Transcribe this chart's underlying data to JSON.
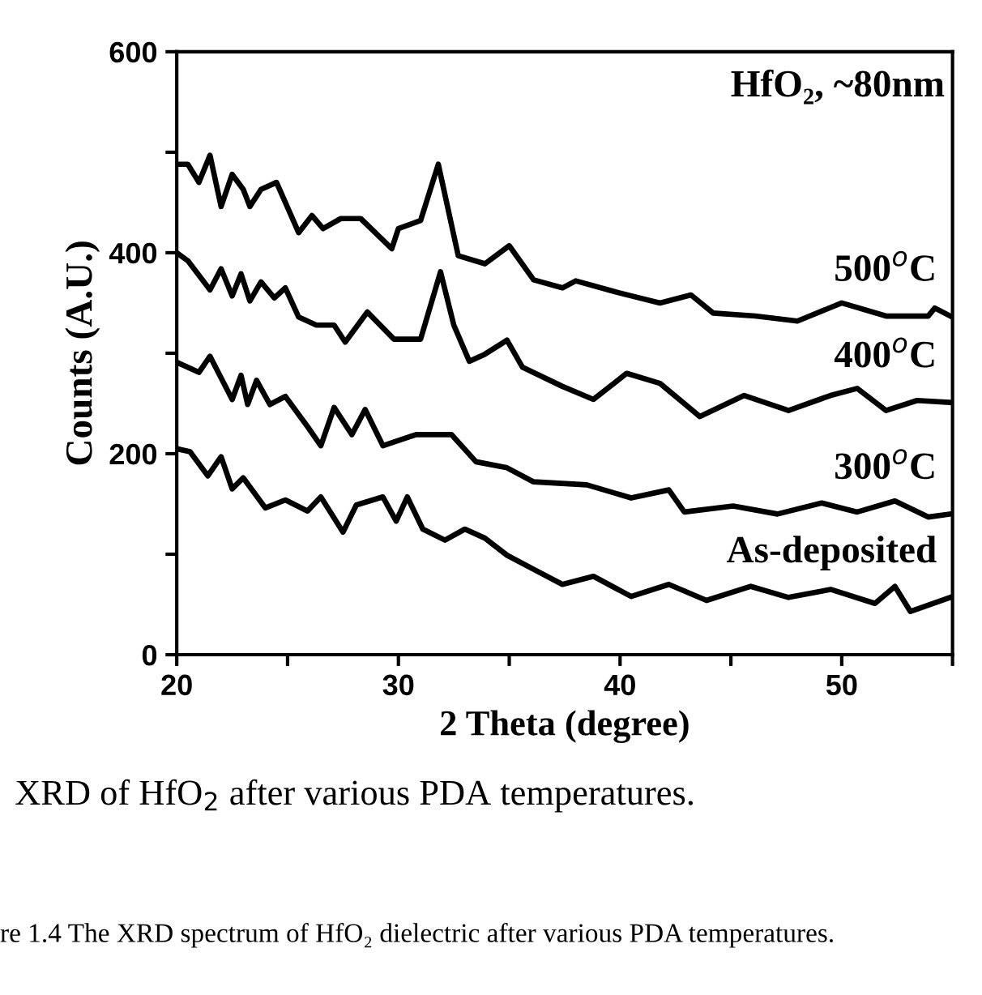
{
  "chart_data": {
    "type": "line",
    "xlabel": "2 Theta (degree)",
    "ylabel": "Counts (A.U.)",
    "xlim": [
      20,
      55
    ],
    "xticks": [
      20,
      {
        "value": 25,
        "label": null
      },
      30,
      {
        "value": 35,
        "label": null
      },
      40,
      {
        "value": 45,
        "label": null
      },
      50,
      {
        "value": 55,
        "label": null
      }
    ],
    "ylim": [
      0,
      600
    ],
    "yticks": [
      0,
      {
        "value": 100,
        "label": null
      },
      200,
      {
        "value": 300,
        "label": null
      },
      400,
      {
        "value": 500,
        "label": null
      },
      600
    ],
    "grid": false,
    "legend": false,
    "marker": "none",
    "line_style": "solid",
    "annotations": [
      "HfO₂, ~80nm",
      "XRD of HfO$_{2}$ after various PDA temperatures.",
      "re 1.4 The XRD spectrum of HfO₂ dielectric after various PDA temperatures."
    ],
    "series": [
      {
        "name": "500$^{o}$C",
        "color": "#000000",
        "x": [
          20,
          20.5,
          21,
          21.5,
          22,
          22.5,
          23,
          23.3,
          23.8,
          24.5,
          25.5,
          26.1,
          26.6,
          27.4,
          28.3,
          29.7,
          30,
          31,
          31.8,
          32.7,
          33.9,
          35.0,
          36.1,
          37.4,
          38.0,
          39.8,
          41.8,
          43.2,
          44.2,
          46.1,
          48.0,
          50.0,
          52.0,
          53.9,
          54.2,
          54.9
        ],
        "values": [
          488,
          488,
          470,
          497,
          446,
          478,
          463,
          446,
          463,
          470,
          420,
          437,
          424,
          434,
          434,
          404,
          424,
          432,
          488,
          397,
          389,
          407,
          373,
          365,
          372,
          361,
          350,
          358,
          340,
          337,
          332,
          350,
          337,
          337,
          345,
          337
        ]
      },
      {
        "name": "400$^{o}$C",
        "color": "#000000",
        "x": [
          20,
          20.5,
          21.5,
          22,
          22.5,
          22.9,
          23.3,
          23.8,
          24.4,
          24.9,
          25.5,
          26.3,
          27.1,
          27.6,
          28.6,
          29.8,
          31,
          31.9,
          32.5,
          33.2,
          33.9,
          34.9,
          35.6,
          37.4,
          38.8,
          40.3,
          41.8,
          43.6,
          45.6,
          47.6,
          49.5,
          50.7,
          52,
          53.4,
          54.9
        ],
        "values": [
          400,
          392,
          363,
          384,
          357,
          379,
          352,
          371,
          355,
          365,
          336,
          328,
          328,
          311,
          341,
          314,
          314,
          381,
          328,
          292,
          299,
          313,
          286,
          267,
          254,
          280,
          270,
          237,
          258,
          243,
          258,
          265,
          243,
          253,
          251
        ]
      },
      {
        "name": "300$^{o}$C",
        "color": "#000000",
        "x": [
          20,
          21,
          21.5,
          22.5,
          22.9,
          23.2,
          23.6,
          24.2,
          24.9,
          25.9,
          26.5,
          27.1,
          27.9,
          28.5,
          29.3,
          30.8,
          32.4,
          33.5,
          34.9,
          36.1,
          38.5,
          40.5,
          42.2,
          42.9,
          45.1,
          47.1,
          49.1,
          50.7,
          52.4,
          53.9,
          54.9
        ],
        "values": [
          291,
          281,
          297,
          254,
          278,
          249,
          273,
          249,
          257,
          227,
          208,
          246,
          219,
          244,
          208,
          219,
          219,
          192,
          186,
          172,
          169,
          156,
          164,
          142,
          148,
          140,
          151,
          142,
          153,
          137,
          140
        ]
      },
      {
        "name": "As-deposited",
        "color": "#000000",
        "x": [
          20,
          20.6,
          21.4,
          22,
          22.5,
          23,
          24,
          24.9,
          25.9,
          26.5,
          27.5,
          28.1,
          29.3,
          29.9,
          30.4,
          31.1,
          32.1,
          33,
          33.9,
          34.9,
          36.1,
          37.4,
          38.8,
          40.5,
          42.2,
          43.9,
          45.9,
          47.6,
          49.5,
          51.5,
          52.4,
          53.1,
          54.9
        ],
        "values": [
          205,
          202,
          178,
          197,
          165,
          176,
          146,
          154,
          143,
          157,
          122,
          149,
          157,
          133,
          157,
          125,
          114,
          125,
          116,
          99,
          85,
          70,
          78,
          58,
          70,
          54,
          68,
          57,
          65,
          51,
          68,
          43,
          57
        ]
      }
    ]
  }
}
